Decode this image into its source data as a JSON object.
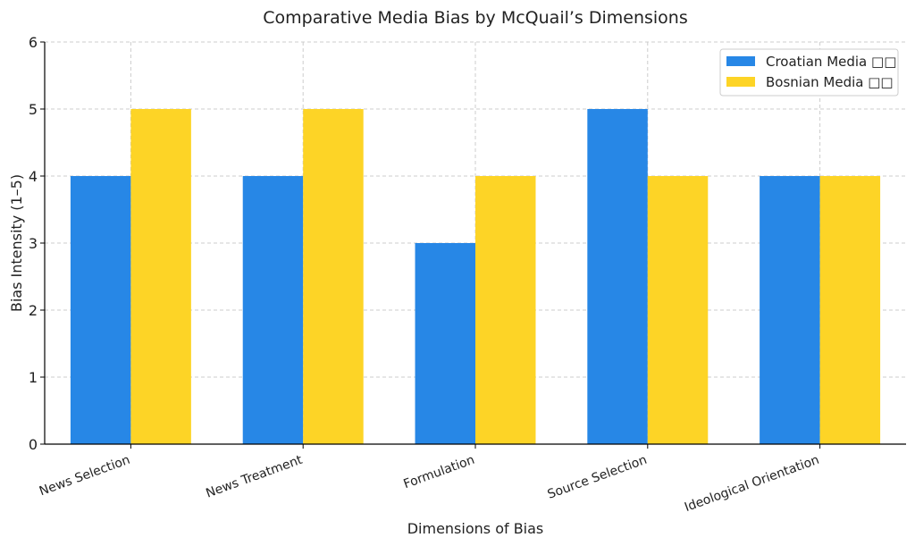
{
  "chart_data": {
    "type": "bar",
    "title": "Comparative Media Bias by McQuail’s Dimensions",
    "xlabel": "Dimensions of Bias",
    "ylabel": "Bias Intensity (1–5)",
    "ylim": [
      0,
      6
    ],
    "yticks": [
      0,
      1,
      2,
      3,
      4,
      5,
      6
    ],
    "categories": [
      "News Selection",
      "News Treatment",
      "Formulation",
      "Source Selection",
      "Ideological Orientation"
    ],
    "series": [
      {
        "name": "Croatian Media □□",
        "color": "#2787e6",
        "values": [
          4,
          4,
          3,
          5,
          4
        ]
      },
      {
        "name": "Bosnian Media □□",
        "color": "#fdd426",
        "values": [
          5,
          5,
          4,
          4,
          4
        ]
      }
    ],
    "grid": true,
    "legend_position": "top-right"
  }
}
